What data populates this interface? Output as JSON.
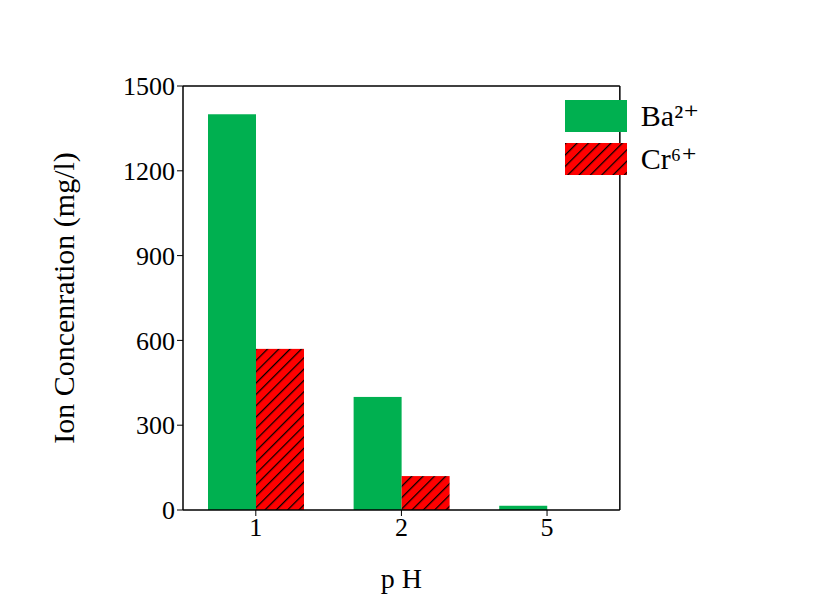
{
  "chart_data": {
    "type": "bar",
    "categories": [
      "1",
      "2",
      "5"
    ],
    "x_label": "p H",
    "y_label": "Ion Concenration (mg/l)",
    "series": [
      {
        "name": "Ba²⁺",
        "color": "#00b050",
        "values": [
          1400,
          400,
          15
        ]
      },
      {
        "name": "Cr⁶⁺",
        "color": "#ff0000",
        "values": [
          570,
          120,
          0
        ],
        "marker": "hatch"
      }
    ],
    "ylim": [
      0,
      1500
    ],
    "yticks": [
      0,
      300,
      600,
      900,
      1200,
      1500
    ],
    "legend": "upper right"
  }
}
